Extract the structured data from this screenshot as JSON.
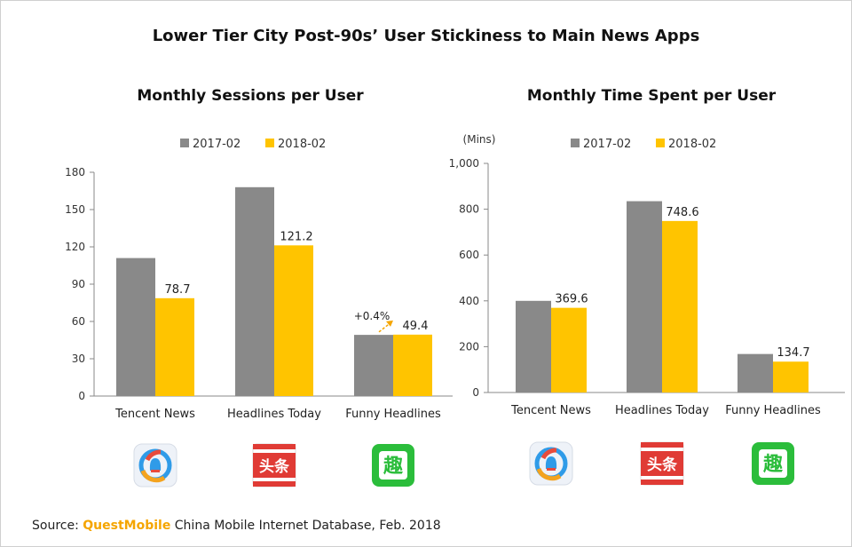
{
  "title": "Lower Tier City Post-90s’ User Stickiness to Main News Apps",
  "source": {
    "prefix": "Source: ",
    "brand": "QuestMobile",
    "rest": " China Mobile Internet Database, Feb. 2018"
  },
  "colors": {
    "s2017": "#898989",
    "s2018": "#ffc400",
    "axis": "#888888",
    "annotation": "#f5a500"
  },
  "icons": [
    "tencent-news-icon",
    "headlines-today-icon",
    "funny-headlines-icon"
  ],
  "icon_text": {
    "headlines": "头条",
    "funny": "趣"
  },
  "chart_data": [
    {
      "type": "bar",
      "title": "Monthly Sessions per User",
      "ylabel": "",
      "categories": [
        "Tencent News",
        "Headlines Today",
        "Funny Headlines"
      ],
      "series": [
        {
          "name": "2017-02",
          "values": [
            111,
            168,
            49.2
          ]
        },
        {
          "name": "2018-02",
          "values": [
            78.7,
            121.2,
            49.4
          ]
        }
      ],
      "data_labels": [
        "",
        "",
        "",
        "78.7",
        "121.2",
        "49.4"
      ],
      "annotation": "+0.4%",
      "ylim": [
        0,
        180
      ],
      "yticks": [
        0,
        30,
        60,
        90,
        120,
        150,
        180
      ],
      "ytick_labels": [
        "0",
        "30",
        "60",
        "90",
        "120",
        "150",
        "180"
      ],
      "legend": "top"
    },
    {
      "type": "bar",
      "title": "Monthly Time Spent per User",
      "ylabel": "(Mins)",
      "categories": [
        "Tencent News",
        "Headlines Today",
        "Funny Headlines"
      ],
      "series": [
        {
          "name": "2017-02",
          "values": [
            400,
            835,
            168
          ]
        },
        {
          "name": "2018-02",
          "values": [
            369.6,
            748.6,
            134.7
          ]
        }
      ],
      "data_labels": [
        "",
        "",
        "",
        "369.6",
        "748.6",
        "134.7"
      ],
      "ylim": [
        0,
        1000
      ],
      "yticks": [
        0,
        200,
        400,
        600,
        800,
        1000
      ],
      "ytick_labels": [
        "0",
        "200",
        "400",
        "600",
        "800",
        "1,000"
      ],
      "legend": "top"
    }
  ]
}
